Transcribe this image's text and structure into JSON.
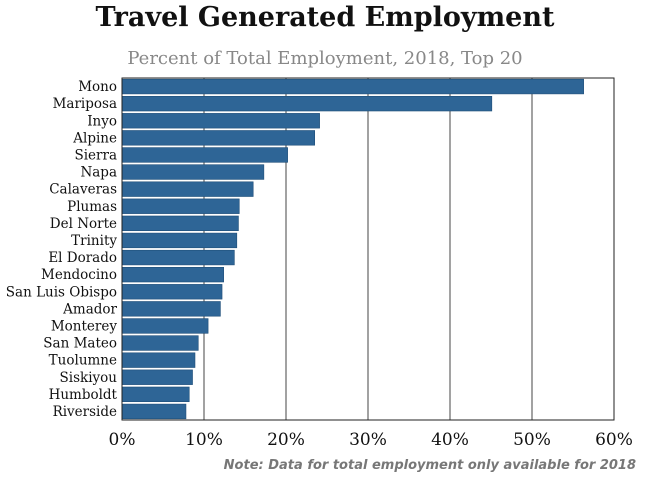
{
  "chart_data": {
    "type": "bar",
    "orientation": "horizontal",
    "title": "Travel Generated Employment",
    "subtitle": "Percent of Total Employment, 2018, Top 20",
    "note": "Note: Data for total employment only available for 2018",
    "categories": [
      "Mono",
      "Mariposa",
      "Inyo",
      "Alpine",
      "Sierra",
      "Napa",
      "Calaveras",
      "Plumas",
      "Del Norte",
      "Trinity",
      "El Dorado",
      "Mendocino",
      "San Luis Obispo",
      "Amador",
      "Monterey",
      "San Mateo",
      "Tuolumne",
      "Siskiyou",
      "Humboldt",
      "Riverside"
    ],
    "values": [
      56.3,
      45.1,
      24.1,
      23.5,
      20.2,
      17.3,
      16.0,
      14.3,
      14.2,
      14.0,
      13.7,
      12.4,
      12.2,
      12.0,
      10.5,
      9.3,
      8.9,
      8.6,
      8.2,
      7.8
    ],
    "xlim": [
      0,
      60
    ],
    "xticks": [
      0,
      10,
      20,
      30,
      40,
      50,
      60
    ],
    "xtick_labels": [
      "0%",
      "10%",
      "20%",
      "30%",
      "40%",
      "50%",
      "60%"
    ],
    "grid": true,
    "bar_color": "#2e6596"
  }
}
